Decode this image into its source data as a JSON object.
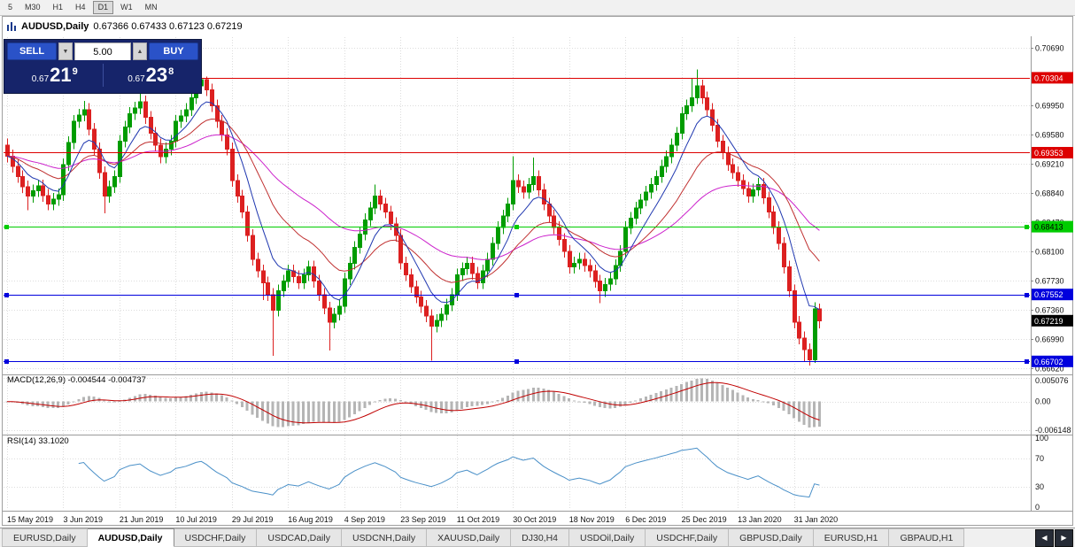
{
  "toolbar": {
    "timeframes": [
      {
        "label": "5",
        "active": false
      },
      {
        "label": "M30",
        "active": false
      },
      {
        "label": "H1",
        "active": false
      },
      {
        "label": "H4",
        "active": false
      },
      {
        "label": "D1",
        "active": true
      },
      {
        "label": "W1",
        "active": false
      },
      {
        "label": "MN",
        "active": false
      }
    ]
  },
  "chart": {
    "title": "AUDUSD,Daily",
    "ohlc_text": "0.67366 0.67433 0.67123 0.67219",
    "one_click": {
      "sell_label": "SELL",
      "buy_label": "BUY",
      "volume": "5.00",
      "vol_down_icon": "▼",
      "vol_up_icon": "▲",
      "sell_price_prefix": "0.67",
      "sell_price_big": "21",
      "sell_price_sup": "9",
      "buy_price_prefix": "0.67",
      "buy_price_big": "23",
      "buy_price_sup": "8"
    }
  },
  "chart_data": {
    "type": "candlestick",
    "symbol": "AUDUSD",
    "period": "Daily",
    "ylim": [
      0.6657,
      0.7082
    ],
    "y_ticks": [
      0.7069,
      0.6995,
      0.6958,
      0.6921,
      0.6884,
      0.6847,
      0.681,
      0.6773,
      0.6736,
      0.6699,
      0.6662
    ],
    "x_ticks": [
      {
        "i": 0,
        "label": "15 May 2019"
      },
      {
        "i": 11,
        "label": "3 Jun 2019"
      },
      {
        "i": 22,
        "label": "21 Jun 2019"
      },
      {
        "i": 33,
        "label": "10 Jul 2019"
      },
      {
        "i": 44,
        "label": "29 Jul 2019"
      },
      {
        "i": 55,
        "label": "16 Aug 2019"
      },
      {
        "i": 66,
        "label": "4 Sep 2019"
      },
      {
        "i": 77,
        "label": "23 Sep 2019"
      },
      {
        "i": 88,
        "label": "11 Oct 2019"
      },
      {
        "i": 99,
        "label": "30 Oct 2019"
      },
      {
        "i": 110,
        "label": "18 Nov 2019"
      },
      {
        "i": 121,
        "label": "6 Dec 2019"
      },
      {
        "i": 132,
        "label": "25 Dec 2019"
      },
      {
        "i": 143,
        "label": "13 Jan 2020"
      },
      {
        "i": 154,
        "label": "31 Jan 2020"
      }
    ],
    "colors": {
      "up": "#009c00",
      "down": "#dc2020",
      "grid": "#dcdcdc",
      "ma_fast": "#2038b0",
      "ma_mid": "#c03030",
      "ma_slow": "#cc22cc"
    },
    "ma_periods": {
      "fast": 8,
      "mid": 20,
      "slow": 45
    },
    "h_lines": [
      {
        "price": 0.70304,
        "label": "0.70304",
        "color": "#dd0000",
        "text_color": "#ffffff",
        "handles": false
      },
      {
        "price": 0.69353,
        "label": "0.69353",
        "color": "#dd0000",
        "text_color": "#ffffff",
        "handles": false
      },
      {
        "price": 0.68413,
        "label": "0.68413",
        "color": "#00cc00",
        "text_color": "#000000",
        "handles": true
      },
      {
        "price": 0.67552,
        "label": "0.67552",
        "color": "#0000dd",
        "text_color": "#ffffff",
        "handles": true
      },
      {
        "price": 0.66702,
        "label": "0.66702",
        "color": "#0000dd",
        "text_color": "#ffffff",
        "handles": true
      }
    ],
    "current": {
      "price": 0.67219,
      "label": "0.67219",
      "bg": "#000000",
      "text_color": "#ffffff"
    },
    "macd": {
      "name": "MACD(12,26,9)",
      "values": "-0.004544 -0.004737",
      "fast": 12,
      "slow": 26,
      "signal": 9,
      "ylim": [
        -0.0065,
        0.00525
      ],
      "ticks": [
        {
          "v": 0.005076,
          "label": "0.005076"
        },
        {
          "v": 0,
          "label": "0.00"
        },
        {
          "v": -0.006148,
          "label": "-0.006148"
        }
      ],
      "hist_color": "#b5b5b5",
      "signal_color": "#c00000"
    },
    "rsi": {
      "name": "RSI(14)",
      "value": "33.1020",
      "period": 14,
      "ylim": [
        0,
        100
      ],
      "ticks": [
        {
          "v": 100,
          "label": "100"
        },
        {
          "v": 70,
          "label": "70"
        },
        {
          "v": 30,
          "label": "30"
        },
        {
          "v": 0,
          "label": "0"
        }
      ],
      "levels": [
        70,
        30
      ],
      "color": "#4a90c8"
    },
    "candles": [
      [
        0.6945,
        0.6953,
        0.6923,
        0.6931
      ],
      [
        0.6931,
        0.6939,
        0.691,
        0.6918
      ],
      [
        0.6918,
        0.6926,
        0.6897,
        0.6905
      ],
      [
        0.6905,
        0.6913,
        0.6884,
        0.6892
      ],
      [
        0.6892,
        0.69,
        0.6862,
        0.688
      ],
      [
        0.688,
        0.6895,
        0.6872,
        0.6887
      ],
      [
        0.6887,
        0.6901,
        0.6879,
        0.6893
      ],
      [
        0.6893,
        0.6901,
        0.6873,
        0.6881
      ],
      [
        0.6881,
        0.6889,
        0.6862,
        0.687
      ],
      [
        0.687,
        0.6884,
        0.6862,
        0.6876
      ],
      [
        0.6876,
        0.689,
        0.6868,
        0.6882
      ],
      [
        0.6882,
        0.6928,
        0.6874,
        0.692
      ],
      [
        0.692,
        0.6956,
        0.6912,
        0.6948
      ],
      [
        0.6948,
        0.6983,
        0.694,
        0.6975
      ],
      [
        0.6975,
        0.6991,
        0.6967,
        0.6983
      ],
      [
        0.6983,
        0.7001,
        0.6975,
        0.699
      ],
      [
        0.699,
        0.6998,
        0.6957,
        0.6965
      ],
      [
        0.6965,
        0.6973,
        0.6932,
        0.694
      ],
      [
        0.694,
        0.6948,
        0.6902,
        0.691
      ],
      [
        0.691,
        0.6918,
        0.6858,
        0.688
      ],
      [
        0.688,
        0.69,
        0.6872,
        0.6892
      ],
      [
        0.6892,
        0.6913,
        0.6884,
        0.6905
      ],
      [
        0.6905,
        0.6958,
        0.6897,
        0.695
      ],
      [
        0.695,
        0.6976,
        0.6942,
        0.6968
      ],
      [
        0.6968,
        0.6993,
        0.696,
        0.6985
      ],
      [
        0.6985,
        0.7,
        0.6977,
        0.6992
      ],
      [
        0.6992,
        0.7011,
        0.6984,
        0.7
      ],
      [
        0.7,
        0.7008,
        0.6972,
        0.698
      ],
      [
        0.698,
        0.6988,
        0.6952,
        0.696
      ],
      [
        0.696,
        0.6968,
        0.6937,
        0.6945
      ],
      [
        0.6945,
        0.6953,
        0.6922,
        0.693
      ],
      [
        0.693,
        0.6948,
        0.6922,
        0.694
      ],
      [
        0.694,
        0.6958,
        0.6932,
        0.695
      ],
      [
        0.695,
        0.6983,
        0.6942,
        0.6975
      ],
      [
        0.6975,
        0.699,
        0.6967,
        0.6982
      ],
      [
        0.6982,
        0.6998,
        0.6974,
        0.699
      ],
      [
        0.699,
        0.7013,
        0.6982,
        0.7005
      ],
      [
        0.7005,
        0.7029,
        0.6997,
        0.702
      ],
      [
        0.702,
        0.7033,
        0.7012,
        0.7028
      ],
      [
        0.7028,
        0.7032,
        0.7007,
        0.7015
      ],
      [
        0.7015,
        0.7023,
        0.6987,
        0.6995
      ],
      [
        0.6995,
        0.7003,
        0.6967,
        0.6975
      ],
      [
        0.6975,
        0.6983,
        0.695,
        0.6958
      ],
      [
        0.6958,
        0.6966,
        0.6932,
        0.694
      ],
      [
        0.694,
        0.6948,
        0.6892,
        0.69
      ],
      [
        0.69,
        0.6908,
        0.6872,
        0.688
      ],
      [
        0.688,
        0.6888,
        0.6852,
        0.686
      ],
      [
        0.686,
        0.6868,
        0.6822,
        0.683
      ],
      [
        0.683,
        0.6838,
        0.6792,
        0.68
      ],
      [
        0.68,
        0.6808,
        0.6777,
        0.6785
      ],
      [
        0.6785,
        0.6793,
        0.6748,
        0.677
      ],
      [
        0.677,
        0.6778,
        0.6747,
        0.6755
      ],
      [
        0.6755,
        0.6763,
        0.6677,
        0.6735
      ],
      [
        0.6735,
        0.6768,
        0.6727,
        0.676
      ],
      [
        0.676,
        0.678,
        0.6752,
        0.6772
      ],
      [
        0.6772,
        0.6793,
        0.6764,
        0.6785
      ],
      [
        0.6785,
        0.6793,
        0.677,
        0.6778
      ],
      [
        0.6778,
        0.6786,
        0.6762,
        0.677
      ],
      [
        0.677,
        0.6788,
        0.6762,
        0.678
      ],
      [
        0.678,
        0.6798,
        0.6772,
        0.679
      ],
      [
        0.679,
        0.6798,
        0.6764,
        0.6772
      ],
      [
        0.6772,
        0.678,
        0.6747,
        0.6755
      ],
      [
        0.6755,
        0.6763,
        0.673,
        0.6738
      ],
      [
        0.6738,
        0.6746,
        0.6684,
        0.672
      ],
      [
        0.672,
        0.6738,
        0.6712,
        0.673
      ],
      [
        0.673,
        0.6748,
        0.6722,
        0.674
      ],
      [
        0.674,
        0.6783,
        0.6732,
        0.6775
      ],
      [
        0.6775,
        0.6803,
        0.6767,
        0.6795
      ],
      [
        0.6795,
        0.6823,
        0.6787,
        0.6815
      ],
      [
        0.6815,
        0.684,
        0.6807,
        0.6832
      ],
      [
        0.6832,
        0.6858,
        0.6824,
        0.685
      ],
      [
        0.685,
        0.6873,
        0.6842,
        0.6865
      ],
      [
        0.6865,
        0.6895,
        0.6857,
        0.688
      ],
      [
        0.688,
        0.6888,
        0.6862,
        0.687
      ],
      [
        0.687,
        0.6878,
        0.6852,
        0.686
      ],
      [
        0.686,
        0.6868,
        0.6837,
        0.6845
      ],
      [
        0.6845,
        0.6853,
        0.6822,
        0.683
      ],
      [
        0.683,
        0.6838,
        0.6787,
        0.6795
      ],
      [
        0.6795,
        0.6803,
        0.6772,
        0.678
      ],
      [
        0.678,
        0.6788,
        0.6757,
        0.6765
      ],
      [
        0.6765,
        0.6773,
        0.6744,
        0.6752
      ],
      [
        0.6752,
        0.676,
        0.6732,
        0.674
      ],
      [
        0.674,
        0.6748,
        0.672,
        0.6728
      ],
      [
        0.6728,
        0.6736,
        0.6671,
        0.6715
      ],
      [
        0.6715,
        0.673,
        0.6707,
        0.6722
      ],
      [
        0.6722,
        0.6738,
        0.6714,
        0.673
      ],
      [
        0.673,
        0.675,
        0.6722,
        0.6742
      ],
      [
        0.6742,
        0.6763,
        0.6734,
        0.6755
      ],
      [
        0.6755,
        0.6788,
        0.6747,
        0.678
      ],
      [
        0.678,
        0.6796,
        0.6772,
        0.6788
      ],
      [
        0.6788,
        0.6803,
        0.678,
        0.6795
      ],
      [
        0.6795,
        0.6803,
        0.6774,
        0.6782
      ],
      [
        0.6782,
        0.679,
        0.6762,
        0.677
      ],
      [
        0.677,
        0.6793,
        0.6762,
        0.6785
      ],
      [
        0.6785,
        0.6808,
        0.6777,
        0.68
      ],
      [
        0.68,
        0.6828,
        0.6792,
        0.682
      ],
      [
        0.682,
        0.6848,
        0.6812,
        0.684
      ],
      [
        0.684,
        0.6863,
        0.6832,
        0.6855
      ],
      [
        0.6855,
        0.6878,
        0.6847,
        0.687
      ],
      [
        0.687,
        0.6931,
        0.6862,
        0.69
      ],
      [
        0.69,
        0.6908,
        0.6884,
        0.6892
      ],
      [
        0.6892,
        0.69,
        0.6877,
        0.6885
      ],
      [
        0.6885,
        0.6903,
        0.6877,
        0.6895
      ],
      [
        0.6895,
        0.6929,
        0.6887,
        0.6905
      ],
      [
        0.6905,
        0.6913,
        0.688,
        0.6888
      ],
      [
        0.6888,
        0.6896,
        0.6862,
        0.687
      ],
      [
        0.687,
        0.6878,
        0.6847,
        0.6855
      ],
      [
        0.6855,
        0.6863,
        0.6832,
        0.684
      ],
      [
        0.684,
        0.6848,
        0.6817,
        0.6825
      ],
      [
        0.6825,
        0.6833,
        0.6802,
        0.681
      ],
      [
        0.681,
        0.6818,
        0.6782,
        0.679
      ],
      [
        0.679,
        0.6803,
        0.6782,
        0.6795
      ],
      [
        0.6795,
        0.6808,
        0.6787,
        0.68
      ],
      [
        0.68,
        0.6808,
        0.6784,
        0.6792
      ],
      [
        0.6792,
        0.68,
        0.6777,
        0.6785
      ],
      [
        0.6785,
        0.6793,
        0.6764,
        0.6772
      ],
      [
        0.6772,
        0.678,
        0.6744,
        0.676
      ],
      [
        0.676,
        0.6776,
        0.6752,
        0.6768
      ],
      [
        0.6768,
        0.6783,
        0.676,
        0.6775
      ],
      [
        0.6775,
        0.68,
        0.6767,
        0.6792
      ],
      [
        0.6792,
        0.6818,
        0.6784,
        0.681
      ],
      [
        0.681,
        0.6848,
        0.6802,
        0.684
      ],
      [
        0.684,
        0.686,
        0.6832,
        0.6852
      ],
      [
        0.6852,
        0.6873,
        0.6844,
        0.6865
      ],
      [
        0.6865,
        0.6883,
        0.6857,
        0.6875
      ],
      [
        0.6875,
        0.6893,
        0.6867,
        0.6885
      ],
      [
        0.6885,
        0.6903,
        0.6877,
        0.6895
      ],
      [
        0.6895,
        0.6913,
        0.6887,
        0.6905
      ],
      [
        0.6905,
        0.6926,
        0.6897,
        0.6918
      ],
      [
        0.6918,
        0.6938,
        0.691,
        0.693
      ],
      [
        0.693,
        0.6953,
        0.6922,
        0.6945
      ],
      [
        0.6945,
        0.6968,
        0.6937,
        0.696
      ],
      [
        0.696,
        0.6993,
        0.6952,
        0.6985
      ],
      [
        0.6985,
        0.7003,
        0.6977,
        0.6995
      ],
      [
        0.6995,
        0.703,
        0.6987,
        0.7005
      ],
      [
        0.7005,
        0.7041,
        0.6997,
        0.702
      ],
      [
        0.702,
        0.7028,
        0.6997,
        0.7005
      ],
      [
        0.7005,
        0.7013,
        0.6982,
        0.699
      ],
      [
        0.699,
        0.6998,
        0.6962,
        0.697
      ],
      [
        0.697,
        0.6978,
        0.6942,
        0.695
      ],
      [
        0.695,
        0.6958,
        0.6927,
        0.6935
      ],
      [
        0.6935,
        0.6943,
        0.6912,
        0.692
      ],
      [
        0.692,
        0.6928,
        0.6902,
        0.691
      ],
      [
        0.691,
        0.6918,
        0.6892,
        0.69
      ],
      [
        0.69,
        0.6908,
        0.6882,
        0.689
      ],
      [
        0.689,
        0.6898,
        0.6872,
        0.688
      ],
      [
        0.688,
        0.6896,
        0.6872,
        0.6888
      ],
      [
        0.6888,
        0.6903,
        0.688,
        0.6895
      ],
      [
        0.6895,
        0.6903,
        0.687,
        0.6878
      ],
      [
        0.6878,
        0.6886,
        0.6852,
        0.686
      ],
      [
        0.686,
        0.6868,
        0.6832,
        0.684
      ],
      [
        0.684,
        0.6848,
        0.6812,
        0.682
      ],
      [
        0.682,
        0.6828,
        0.6782,
        0.679
      ],
      [
        0.679,
        0.6798,
        0.6752,
        0.676
      ],
      [
        0.676,
        0.6768,
        0.6712,
        0.672
      ],
      [
        0.672,
        0.6728,
        0.6692,
        0.67
      ],
      [
        0.67,
        0.6708,
        0.667,
        0.6685
      ],
      [
        0.6685,
        0.6693,
        0.6665,
        0.6672
      ],
      [
        0.6672,
        0.6745,
        0.6668,
        0.6737
      ],
      [
        0.67366,
        0.67433,
        0.67123,
        0.67219
      ]
    ]
  },
  "tabs": {
    "nav_left": "◀",
    "nav_right": "▶",
    "items": [
      {
        "label": "EURUSD,Daily",
        "active": false
      },
      {
        "label": "AUDUSD,Daily",
        "active": true
      },
      {
        "label": "USDCHF,Daily",
        "active": false
      },
      {
        "label": "USDCAD,Daily",
        "active": false
      },
      {
        "label": "USDCNH,Daily",
        "active": false
      },
      {
        "label": "XAUUSD,Daily",
        "active": false
      },
      {
        "label": "DJ30,H4",
        "active": false
      },
      {
        "label": "USDOil,Daily",
        "active": false
      },
      {
        "label": "USDCHF,Daily",
        "active": false
      },
      {
        "label": "GBPUSD,Daily",
        "active": false
      },
      {
        "label": "EURUSD,H1",
        "active": false
      },
      {
        "label": "GBPAUD,H1",
        "active": false
      }
    ]
  }
}
